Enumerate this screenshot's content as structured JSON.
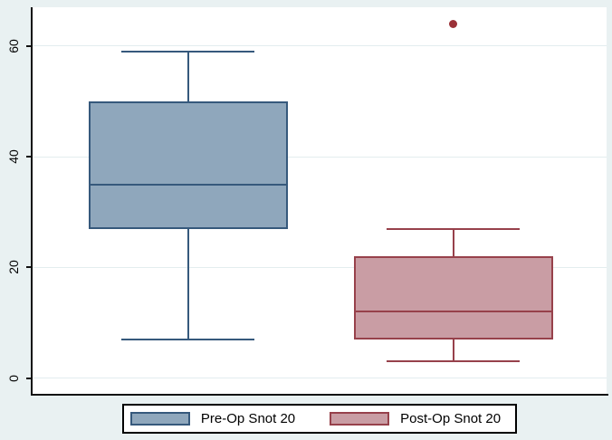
{
  "figure": {
    "background_color": "#e9f1f2",
    "plot_background_color": "#ffffff",
    "gridline_color": "#e3edef",
    "axis_color": "#111111"
  },
  "chart_data": {
    "type": "boxplot",
    "title": "",
    "xlabel": "",
    "ylabel": "",
    "yticks": [
      0,
      20,
      40,
      60
    ],
    "ylim": [
      -3,
      67
    ],
    "grid": true,
    "legend_position": "bottom-center",
    "series": [
      {
        "name": "Pre-Op Snot 20",
        "whisker_low": 7,
        "q1": 27,
        "median": 35,
        "q3": 50,
        "whisker_high": 59,
        "outliers": [],
        "fill_color": "#8fa7bc",
        "stroke_color": "#36597c"
      },
      {
        "name": "Post-Op Snot 20",
        "whisker_low": 3,
        "q1": 7,
        "median": 12,
        "q3": 22,
        "whisker_high": 27,
        "outliers": [
          64
        ],
        "fill_color": "#c99da4",
        "stroke_color": "#97414b",
        "outlier_color": "#9b3138"
      }
    ]
  }
}
